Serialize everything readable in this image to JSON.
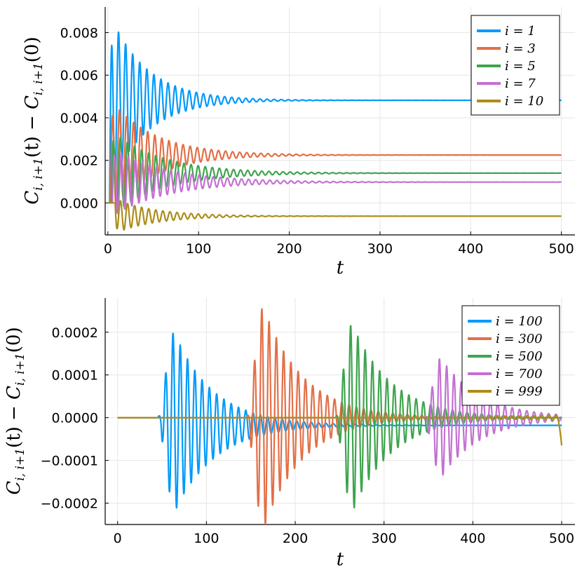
{
  "chart_data": [
    {
      "type": "line",
      "xlabel": "t",
      "ylabel": "C_{i,i+1}(t) − C_{i,i+1}(0)",
      "ylabel_parts": {
        "c1": "C",
        "sub1": "i, i+1",
        "mid": "(t) − ",
        "c2": "C",
        "sub2": "i, i+1",
        "end": "(0)"
      },
      "xlim": [
        -3,
        515
      ],
      "ylim": [
        -0.0015,
        0.0092
      ],
      "xticks": [
        0,
        100,
        200,
        300,
        400,
        500
      ],
      "yticks": [
        0.0,
        0.002,
        0.004,
        0.006,
        0.008
      ],
      "ytick_labels": [
        "0.000",
        "0.002",
        "0.004",
        "0.006",
        "0.008"
      ],
      "xtick_labels": [
        "0",
        "100",
        "200",
        "300",
        "400",
        "500"
      ],
      "grid": true,
      "legend_position": "top-right",
      "series": [
        {
          "name": "i = 1",
          "label": "i = 1",
          "color": "#009AFA",
          "steady": 0.00482,
          "amp": 0.0041,
          "decay": 40,
          "period": 7.8,
          "onset": 2,
          "first_sign": 1
        },
        {
          "name": "i = 3",
          "label": "i = 3",
          "color": "#E36F47",
          "steady": 0.00225,
          "amp": 0.0026,
          "decay": 48,
          "period": 7.8,
          "onset": 3,
          "first_sign": 1
        },
        {
          "name": "i = 5",
          "label": "i = 5",
          "color": "#3EA44E",
          "steady": 0.0014,
          "amp": 0.002,
          "decay": 55,
          "period": 7.8,
          "onset": 4,
          "first_sign": 1
        },
        {
          "name": "i = 7",
          "label": "i = 7",
          "color": "#C371D2",
          "steady": 0.00098,
          "amp": 0.0016,
          "decay": 60,
          "period": 7.8,
          "onset": 5,
          "first_sign": 1
        },
        {
          "name": "i = 10",
          "label": "i = 10",
          "color": "#AC8D18",
          "steady": -0.00062,
          "amp": 0.0008,
          "decay": 45,
          "period": 7.8,
          "onset": 8,
          "first_sign": -1
        }
      ]
    },
    {
      "type": "line",
      "xlabel": "t",
      "ylabel": "C_{i,i+1}(t) − C_{i,i+1}(0)",
      "ylabel_parts": {
        "c1": "C",
        "sub1": "i, i+1",
        "mid": "(t) − ",
        "c2": "C",
        "sub2": "i, i+1",
        "end": "(0)"
      },
      "xlim": [
        -14,
        515
      ],
      "ylim": [
        -0.00025,
        0.00028
      ],
      "xticks": [
        0,
        100,
        200,
        300,
        400,
        500
      ],
      "yticks": [
        -0.0002,
        -0.0001,
        0.0,
        0.0001,
        0.0002
      ],
      "ytick_labels": [
        "−0.0002",
        "−0.0001",
        "0.0000",
        "0.0001",
        "0.0002"
      ],
      "xtick_labels": [
        "0",
        "100",
        "200",
        "300",
        "400",
        "500"
      ],
      "grid": true,
      "legend_position": "top-right",
      "series": [
        {
          "name": "i = 100",
          "label": "i = 100",
          "color": "#009AFA",
          "front": 50,
          "steady": -1.8e-05,
          "peak": 0.00021,
          "period": 8.2
        },
        {
          "name": "i = 300",
          "label": "i = 300",
          "color": "#E36F47",
          "front": 150,
          "steady": 0.0,
          "peak": 0.00026,
          "period": 8.2
        },
        {
          "name": "i = 500",
          "label": "i = 500",
          "color": "#3EA44E",
          "front": 250,
          "steady": 0.0,
          "peak": 0.00022,
          "period": 8.2
        },
        {
          "name": "i = 700",
          "label": "i = 700",
          "color": "#C371D2",
          "front": 350,
          "steady": 0.0,
          "peak": 0.00014,
          "period": 8.2
        },
        {
          "name": "i = 999",
          "label": "i = 999",
          "color": "#AC8D18",
          "front": 495,
          "steady": -6.5e-05,
          "peak": 6.5e-05,
          "period": 8.2
        }
      ]
    }
  ]
}
